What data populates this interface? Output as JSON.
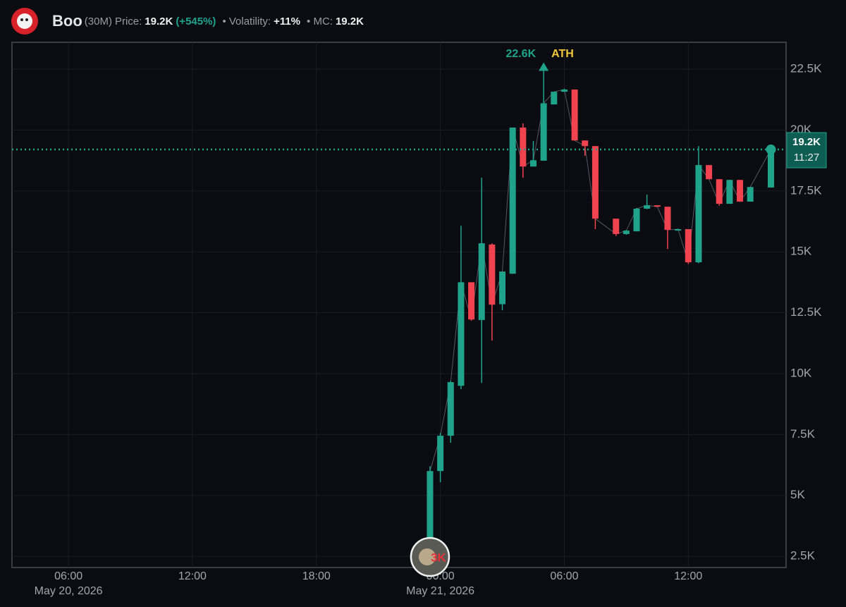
{
  "header": {
    "name": "Boo",
    "interval": "(30M)",
    "price_label": "Price:",
    "price": "19.2K",
    "change": "(+545%)",
    "volatility_label": "• Volatility:",
    "volatility": "+11%",
    "mc_label": "• MC:",
    "mc": "19.2K"
  },
  "chart_data": {
    "type": "candlestick",
    "x": [
      "2026-05-20 23:30",
      "2026-05-21 00:00",
      "2026-05-21 00:30",
      "2026-05-21 01:00",
      "2026-05-21 01:30",
      "2026-05-21 02:00",
      "2026-05-21 02:30",
      "2026-05-21 03:00",
      "2026-05-21 03:30",
      "2026-05-21 04:00",
      "2026-05-21 04:30",
      "2026-05-21 05:00",
      "2026-05-21 05:30",
      "2026-05-21 06:00",
      "2026-05-21 06:30",
      "2026-05-21 07:00",
      "2026-05-21 07:30",
      "2026-05-21 08:30",
      "2026-05-21 09:00",
      "2026-05-21 09:30",
      "2026-05-21 10:00",
      "2026-05-21 10:30",
      "2026-05-21 11:00",
      "2026-05-21 11:30",
      "2026-05-21 12:00",
      "2026-05-21 12:30",
      "2026-05-21 13:00",
      "2026-05-21 13:30",
      "2026-05-21 14:00",
      "2026-05-21 14:30",
      "2026-05-21 15:00",
      "2026-05-21 16:00"
    ],
    "open": [
      2960,
      6000,
      7450,
      9500,
      13750,
      12200,
      15300,
      12850,
      14100,
      20100,
      18500,
      18740,
      21050,
      21570,
      21660,
      19570,
      19340,
      16360,
      15730,
      15840,
      16770,
      16910,
      16850,
      15870,
      15930,
      14570,
      18560,
      17980,
      16970,
      17950,
      17060,
      17640
    ],
    "high": [
      6200,
      7560,
      9700,
      16070,
      13750,
      18040,
      15350,
      14190,
      20100,
      20270,
      19550,
      22600,
      21570,
      21700,
      21660,
      19570,
      19340,
      16360,
      15900,
      16800,
      17350,
      16910,
      16850,
      15950,
      15930,
      19340,
      18560,
      17980,
      17950,
      17950,
      17660,
      19200
    ],
    "low": [
      2960,
      5540,
      7160,
      9360,
      12170,
      9620,
      11360,
      12600,
      14100,
      18040,
      18500,
      18740,
      21050,
      21570,
      19570,
      18940,
      15930,
      15650,
      15700,
      15840,
      16750,
      16850,
      15120,
      15870,
      14500,
      14530,
      17980,
      16900,
      16970,
      17060,
      17060,
      17640
    ],
    "close": [
      6000,
      7450,
      9650,
      13750,
      12220,
      15350,
      12830,
      14190,
      20100,
      18500,
      18760,
      21100,
      21570,
      21660,
      19570,
      19340,
      16360,
      15730,
      15870,
      16770,
      16910,
      16850,
      15900,
      15930,
      14570,
      18560,
      17980,
      16970,
      17950,
      17060,
      17660,
      19200
    ],
    "up_color": "#1fa38a",
    "down_color": "#f0424f",
    "xlim": [
      "2026-05-20 03:16",
      "2026-05-21 16:44"
    ],
    "xticks": [
      {
        "value": "2026-05-20 06:00",
        "label": "06:00"
      },
      {
        "value": "2026-05-20 12:00",
        "label": "12:00"
      },
      {
        "value": "2026-05-20 18:00",
        "label": "18:00"
      },
      {
        "value": "2026-05-21 00:00",
        "label": "00:00"
      },
      {
        "value": "2026-05-21 06:00",
        "label": "06:00"
      },
      {
        "value": "2026-05-21 12:00",
        "label": "12:00"
      }
    ],
    "date_labels": [
      {
        "value": "2026-05-20 06:00",
        "label": "May 20, 2026"
      },
      {
        "value": "2026-05-21 00:00",
        "label": "May 21, 2026"
      }
    ],
    "ylim": [
      2040,
      23600
    ],
    "yticks": [
      {
        "value": 2500,
        "label": "2.5K"
      },
      {
        "value": 5000,
        "label": "5K"
      },
      {
        "value": 7500,
        "label": "7.5K"
      },
      {
        "value": 10000,
        "label": "10K"
      },
      {
        "value": 12500,
        "label": "12.5K"
      },
      {
        "value": 15000,
        "label": "15K"
      },
      {
        "value": 17500,
        "label": "17.5K"
      },
      {
        "value": 20000,
        "label": "20K"
      },
      {
        "value": 22500,
        "label": "22.5K"
      }
    ],
    "grid": true,
    "ath": {
      "value": 22600,
      "label": "22.6K",
      "tag": "ATH",
      "x": "2026-05-21 05:00"
    },
    "last_price": {
      "value": 19200,
      "label": "19.2K",
      "time": "11:27"
    },
    "markers": [
      {
        "x": "2026-05-20 23:30",
        "label": "3K"
      }
    ]
  }
}
